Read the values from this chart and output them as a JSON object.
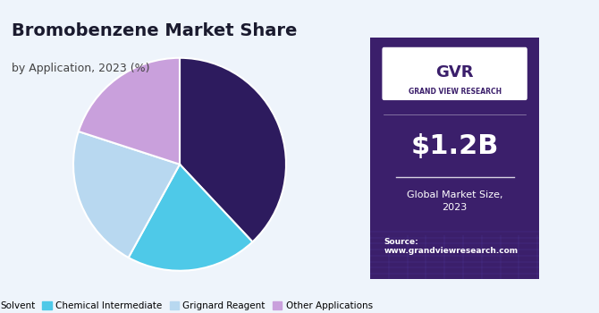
{
  "title": "Bromobenzene Market Share",
  "subtitle": "by Application, 2023 (%)",
  "labels": [
    "Solvent",
    "Chemical Intermediate",
    "Grignard Reagent",
    "Other Applications"
  ],
  "sizes": [
    38,
    20,
    22,
    20
  ],
  "colors": [
    "#2d1b5e",
    "#4ec9e8",
    "#b8d8f0",
    "#c9a0dc"
  ],
  "startangle": 90,
  "bg_color": "#eef4fb",
  "right_bg_color": "#3b1f6b",
  "market_size_text": "$1.2B",
  "market_size_label": "Global Market Size,\n2023",
  "source_text": "Source:\nwww.grandviewresearch.com",
  "legend_colors": [
    "#2d1b5e",
    "#4ec9e8",
    "#b8d8f0",
    "#c9a0dc"
  ]
}
